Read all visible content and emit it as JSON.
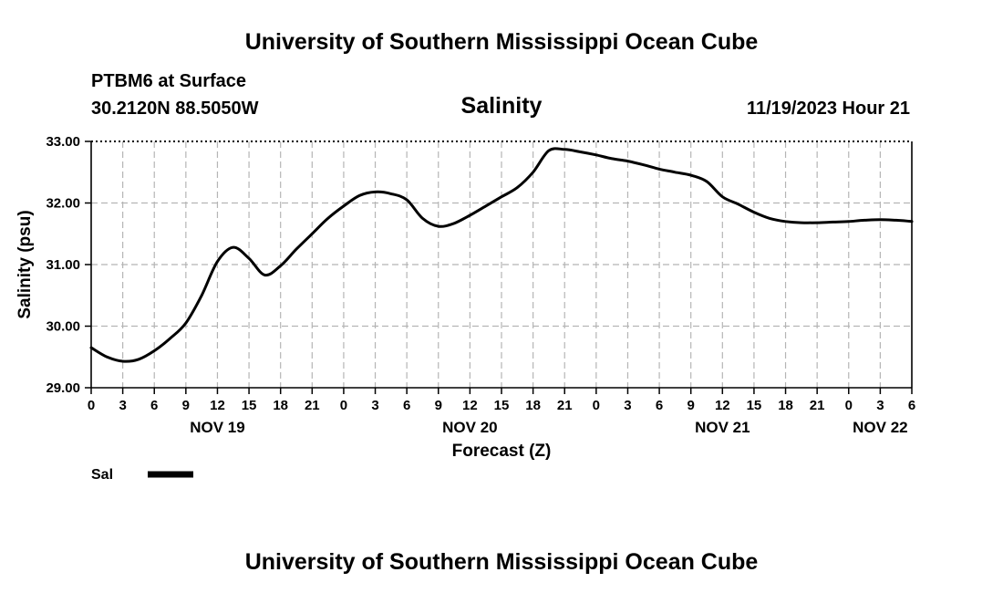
{
  "header": {
    "title": "University of Southern Mississippi Ocean Cube",
    "footer_title": "University of Southern Mississippi Ocean Cube",
    "station": "PTBM6 at Surface",
    "coords": "30.2120N  88.5050W",
    "run_time": "11/19/2023 Hour 21"
  },
  "chart_data": {
    "type": "line",
    "title": "Salinity",
    "xlabel": "Forecast (Z)",
    "ylabel": "Salinity (psu)",
    "ylim": [
      29.0,
      33.0
    ],
    "yticks": [
      "29.00",
      "30.00",
      "31.00",
      "32.00",
      "33.00"
    ],
    "xlim": [
      0,
      78
    ],
    "xticks": [
      "0",
      "3",
      "6",
      "9",
      "12",
      "15",
      "18",
      "21",
      "0",
      "3",
      "6",
      "9",
      "12",
      "15",
      "18",
      "21",
      "0",
      "3",
      "6",
      "9",
      "12",
      "15",
      "18",
      "21",
      "0",
      "3",
      "6"
    ],
    "x_unit": "hours since 11/19 00Z",
    "date_labels": [
      {
        "label": "NOV 19",
        "x": 12
      },
      {
        "label": "NOV 20",
        "x": 36
      },
      {
        "label": "NOV 21",
        "x": 60
      },
      {
        "label": "NOV 22",
        "x": 75
      }
    ],
    "grid": true,
    "series": [
      {
        "name": "Sal",
        "x": [
          0,
          1.5,
          3,
          4.5,
          6,
          7.5,
          9,
          10.5,
          12,
          13.5,
          15,
          16.5,
          18,
          19.5,
          21,
          22.5,
          24,
          25.5,
          27,
          28.5,
          30,
          31.5,
          33,
          34.5,
          36,
          37.5,
          39,
          40.5,
          42,
          43.5,
          45,
          46.5,
          48,
          49.5,
          51,
          52.5,
          54,
          55.5,
          57,
          58.5,
          60,
          61.5,
          63,
          64.5,
          66,
          67.5,
          69,
          70.5,
          72,
          73.5,
          75,
          76.5,
          78
        ],
        "values": [
          29.65,
          29.5,
          29.43,
          29.46,
          29.6,
          29.8,
          30.05,
          30.5,
          31.05,
          31.28,
          31.1,
          30.83,
          30.98,
          31.25,
          31.5,
          31.75,
          31.95,
          32.12,
          32.18,
          32.15,
          32.05,
          31.75,
          31.62,
          31.67,
          31.8,
          31.95,
          32.1,
          32.25,
          32.5,
          32.85,
          32.87,
          32.83,
          32.78,
          32.72,
          32.68,
          32.62,
          32.55,
          32.5,
          32.45,
          32.35,
          32.1,
          31.98,
          31.85,
          31.75,
          31.7,
          31.68,
          31.68,
          31.69,
          31.7,
          31.72,
          31.73,
          31.72,
          31.7
        ]
      }
    ]
  },
  "legend": {
    "label": "Sal"
  }
}
